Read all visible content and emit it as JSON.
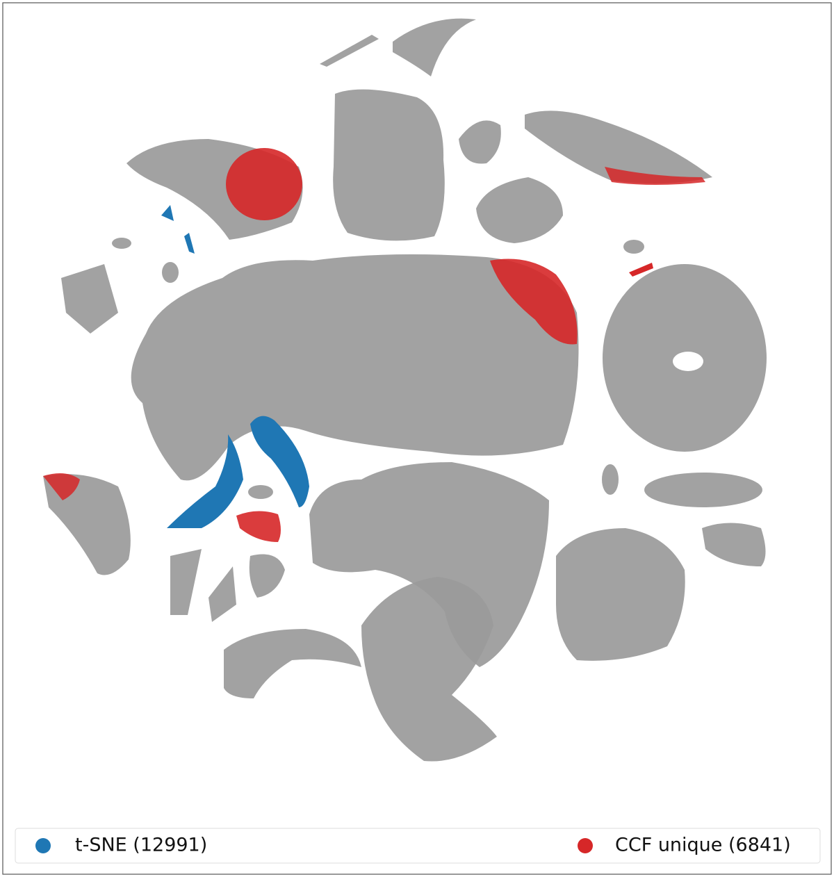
{
  "legend": [
    {
      "label": "t-SNE (12991)",
      "color": "#1f77b4"
    },
    {
      "label": "CCF unique (6841)",
      "color": "#d62728"
    }
  ]
}
